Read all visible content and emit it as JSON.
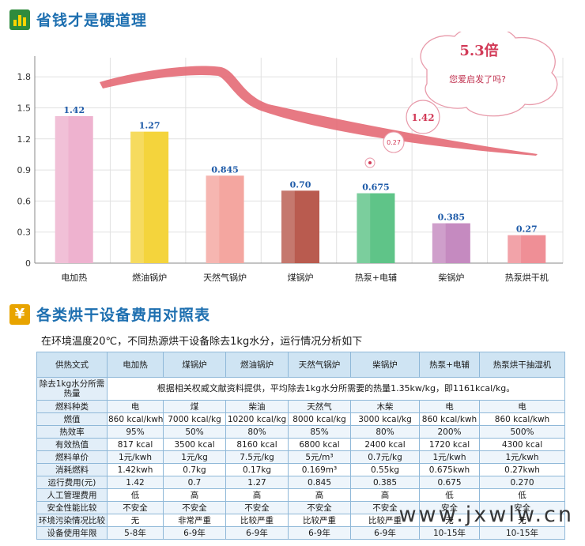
{
  "section1_title": "省钱才是硬道理",
  "section2_title": "各类烘干设备费用对照表",
  "chart_data": {
    "type": "bar",
    "categories": [
      "电加热",
      "燃油锅炉",
      "天然气锅炉",
      "煤锅炉",
      "热泵+电辅",
      "柴锅炉",
      "热泵烘干机"
    ],
    "values": [
      1.42,
      1.27,
      0.845,
      0.7,
      0.675,
      0.385,
      0.27
    ],
    "value_labels": [
      "1.42",
      "1.27",
      "0.845",
      "0.70",
      "0.675",
      "0.385",
      "0.27"
    ],
    "colors": [
      "#eeb2cf",
      "#f4d43c",
      "#f4a6a0",
      "#b95b4f",
      "#5fc488",
      "#c58ac0",
      "#ef8f96"
    ],
    "yticks": [
      0,
      0.3,
      0.6,
      0.9,
      1.2,
      1.5,
      1.8
    ],
    "ytick_labels": [
      "0",
      "0.3",
      "0.6",
      "0.9",
      "1.2",
      "1.5",
      "1.8"
    ],
    "ylim": [
      0,
      2.0
    ],
    "grid": true,
    "annotations": {
      "cloud_main": "5.3倍",
      "cloud_sub": "您爱启发了吗?",
      "bubble_big": "1.42",
      "bubble_small": "0.27"
    }
  },
  "table_intro": "在环境温度20℃，不同热源烘干设备除去1kg水分，运行情况分析如下",
  "table": {
    "headers": [
      "供热文式",
      "电加热",
      "煤锅炉",
      "燃油锅炉",
      "天然气锅炉",
      "柴锅炉",
      "热泵+电辅",
      "热泵烘干抽湿机"
    ],
    "note_label": "除去1kg水分所需热量",
    "note_text": "根据相关权威文献资料提供，平均除去1kg水分所需要的热量1.35kw/kg，即1161kcal/kg。",
    "rows": [
      [
        "燃料种类",
        "电",
        "煤",
        "柴油",
        "天然气",
        "木柴",
        "电",
        "电"
      ],
      [
        "燃值",
        "860 kcal/kwh",
        "7000 kcal/kg",
        "10200 kcal/kg",
        "8000 kcal/kg",
        "3000 kcal/kg",
        "860 kcal/kwh",
        "860 kcal/kwh"
      ],
      [
        "热效率",
        "95%",
        "50%",
        "80%",
        "85%",
        "80%",
        "200%",
        "500%"
      ],
      [
        "有效热值",
        "817 kcal",
        "3500 kcal",
        "8160 kcal",
        "6800 kcal",
        "2400 kcal",
        "1720 kcal",
        "4300 kcal"
      ],
      [
        "燃料单价",
        "1元/kwh",
        "1元/kg",
        "7.5元/kg",
        "5元/m³",
        "0.7元/kg",
        "1元/kwh",
        "1元/kwh"
      ],
      [
        "消耗燃料",
        "1.42kwh",
        "0.7kg",
        "0.17kg",
        "0.169m³",
        "0.55kg",
        "0.675kwh",
        "0.27kwh"
      ],
      [
        "运行费用(元)",
        "1.42",
        "0.7",
        "1.27",
        "0.845",
        "0.385",
        "0.675",
        "0.270"
      ],
      [
        "人工管理费用",
        "低",
        "高",
        "高",
        "高",
        "高",
        "低",
        "低"
      ],
      [
        "安全性能比较",
        "不安全",
        "不安全",
        "不安全",
        "不安全",
        "不安全",
        "安全",
        "安全"
      ],
      [
        "环境污染情况比较",
        "无",
        "非常严重",
        "比较严重",
        "比较严重",
        "比较严重",
        "无",
        "无"
      ],
      [
        "设备使用年限",
        "5-8年",
        "6-9年",
        "6-9年",
        "6-9年",
        "6-9年",
        "10-15年",
        "10-15年"
      ]
    ]
  },
  "watermark": "www.jxwlw.cn"
}
